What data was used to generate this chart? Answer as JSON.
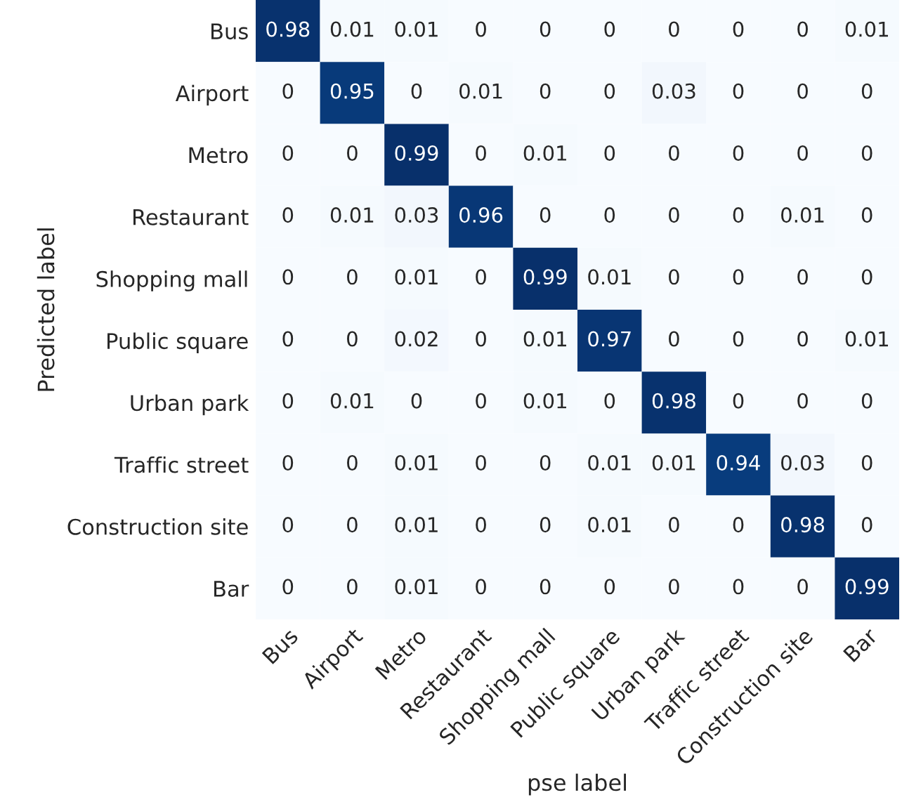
{
  "chart_data": {
    "type": "heatmap",
    "xlabel": "pse label",
    "ylabel": "Predicted label",
    "categories": [
      "Bus",
      "Airport",
      "Metro",
      "Restaurant",
      "Shopping mall",
      "Public square",
      "Urban park",
      "Traffic street",
      "Construction site",
      "Bar"
    ],
    "y_categories": [
      "Bus",
      "Airport",
      "Metro",
      "Restaurant",
      "Shopping mall",
      "Public square",
      "Urban park",
      "Traffic street",
      "Construction site",
      "Bar"
    ],
    "cells": [
      [
        0.98,
        0.01,
        0.01,
        0,
        0,
        0,
        0,
        0,
        0,
        0.01
      ],
      [
        0,
        0.95,
        0,
        0.01,
        0,
        0,
        0.03,
        0,
        0,
        0
      ],
      [
        0,
        0,
        0.99,
        0,
        0.01,
        0,
        0,
        0,
        0,
        0
      ],
      [
        0,
        0.01,
        0.03,
        0.96,
        0,
        0,
        0,
        0,
        0.01,
        0
      ],
      [
        0,
        0,
        0.01,
        0,
        0.99,
        0.01,
        0,
        0,
        0,
        0
      ],
      [
        0,
        0,
        0.02,
        0,
        0.01,
        0.97,
        0,
        0,
        0,
        0.01
      ],
      [
        0,
        0.01,
        0,
        0,
        0.01,
        0,
        0.98,
        0,
        0,
        0
      ],
      [
        0,
        0,
        0.01,
        0,
        0,
        0.01,
        0.01,
        0.94,
        0.03,
        0
      ],
      [
        0,
        0,
        0.01,
        0,
        0,
        0.01,
        0,
        0,
        0.98,
        0
      ],
      [
        0,
        0,
        0.01,
        0,
        0,
        0,
        0,
        0,
        0,
        0.99
      ]
    ],
    "data_labels": true,
    "grid": false
  }
}
